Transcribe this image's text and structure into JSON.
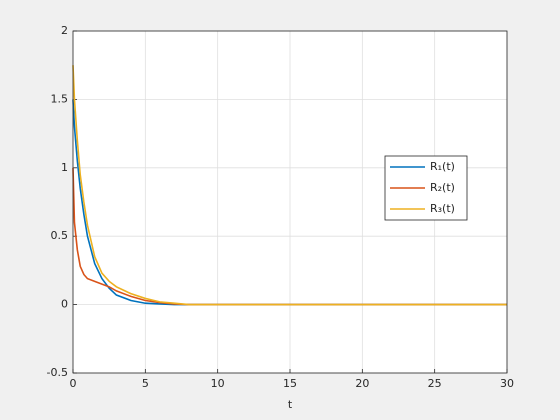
{
  "chart_data": {
    "type": "line",
    "xlabel": "t",
    "x": [
      0,
      0.1,
      0.3,
      0.5,
      0.75,
      1,
      1.5,
      2,
      2.5,
      3,
      4,
      5,
      6,
      7,
      8,
      10,
      15,
      20,
      25,
      30
    ],
    "series": [
      {
        "name": "R₁(t)",
        "color": "#0072bd",
        "values": [
          1.5,
          1.3,
          1.05,
          0.85,
          0.66,
          0.5,
          0.3,
          0.19,
          0.12,
          0.07,
          0.03,
          0.01,
          0.005,
          0,
          0,
          0,
          0,
          0,
          0,
          0
        ]
      },
      {
        "name": "R₂(t)",
        "color": "#d95319",
        "values": [
          1.0,
          0.6,
          0.4,
          0.28,
          0.22,
          0.19,
          0.17,
          0.15,
          0.13,
          0.1,
          0.06,
          0.03,
          0.015,
          0.005,
          0,
          0,
          0,
          0,
          0,
          0
        ]
      },
      {
        "name": "R₃(t)",
        "color": "#edb120",
        "values": [
          1.75,
          1.5,
          1.2,
          0.95,
          0.75,
          0.58,
          0.35,
          0.23,
          0.17,
          0.13,
          0.08,
          0.045,
          0.02,
          0.01,
          0,
          0,
          0,
          0,
          0,
          0
        ]
      }
    ],
    "xlim": [
      0,
      30
    ],
    "xticks": [
      0,
      5,
      10,
      15,
      20,
      25,
      30
    ],
    "ylim": [
      -0.5,
      2
    ],
    "yticks": [
      -0.5,
      0,
      0.5,
      1,
      1.5,
      2
    ],
    "grid": true,
    "legend": "east"
  }
}
